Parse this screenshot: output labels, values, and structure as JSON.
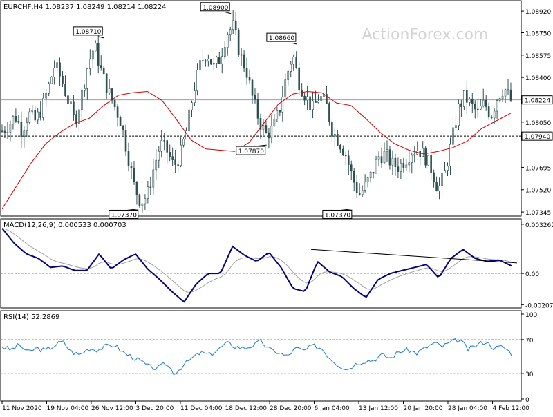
{
  "watermark": "ActionForex.com",
  "colors": {
    "candle": "#2f4f4f",
    "ma": "#cc0000",
    "macd": "#000080",
    "signal": "#a0a0a0",
    "rsi": "#1e78c8",
    "frame": "#000000",
    "dotted": "#a0a0a0"
  },
  "chart_data": [
    {
      "type": "candlestick",
      "title": "EURCHF,H4  1.08237 1.08249 1.08214 1.08224",
      "ylim": [
        1.0734,
        1.0898
      ],
      "y_ticks": [
        "1.08920",
        "1.08750",
        "1.08575",
        "1.08400",
        "1.08050",
        "1.07695",
        "1.07520",
        "1.07345"
      ],
      "y_tick_values": [
        1.0892,
        1.0875,
        1.08575,
        1.084,
        1.0805,
        1.07695,
        1.0752,
        1.07345
      ],
      "current_price_label": "1.08224",
      "current_price": 1.08224,
      "support_label": "1.07940",
      "support": 1.0794,
      "x_ticks": [
        "11 Nov 2020",
        "19 Nov 04:00",
        "26 Nov 12:00",
        "3 Dec 20:00",
        "11 Dec 04:00",
        "18 Dec 12:00",
        "28 Dec 20:00",
        "6 Jan 04:00",
        "13 Jan 12:00",
        "20 Jan 20:00",
        "28 Jan 04:00",
        "4 Feb 12:00"
      ],
      "annotations": [
        {
          "label": "1.08710",
          "value": 1.0871
        },
        {
          "label": "1.08900",
          "value": 1.089
        },
        {
          "label": "1.08660",
          "value": 1.0866
        },
        {
          "label": "1.07370",
          "value": 1.0737
        },
        {
          "label": "1.07870",
          "value": 1.0787
        },
        {
          "label": "1.07370",
          "value": 1.0737
        }
      ],
      "close_path": [
        1.0798,
        1.0803,
        1.081,
        1.0798,
        1.0812,
        1.0806,
        1.0815,
        1.0832,
        1.085,
        1.0838,
        1.0822,
        1.0805,
        1.0825,
        1.085,
        1.0865,
        1.0845,
        1.083,
        1.0818,
        1.0805,
        1.078,
        1.0755,
        1.0742,
        1.0748,
        1.077,
        1.0788,
        1.0782,
        1.077,
        1.078,
        1.08,
        1.083,
        1.085,
        1.086,
        1.0848,
        1.0855,
        1.0875,
        1.088,
        1.0858,
        1.0845,
        1.0822,
        1.0805,
        1.0795,
        1.08,
        1.0815,
        1.084,
        1.0858,
        1.0835,
        1.0825,
        1.0815,
        1.0825,
        1.082,
        1.0798,
        1.079,
        1.078,
        1.0762,
        1.0748,
        1.0755,
        1.0765,
        1.0778,
        1.078,
        1.0772,
        1.077,
        1.0775,
        1.0782,
        1.0784,
        1.0778,
        1.0768,
        1.0752,
        1.0765,
        1.0788,
        1.0815,
        1.0825,
        1.0818,
        1.0812,
        1.082,
        1.081,
        1.0825,
        1.0832,
        1.0822
      ],
      "ma_path": [
        1.0737,
        1.0755,
        1.0773,
        1.0788,
        1.0797,
        1.0804,
        1.0808,
        1.0818,
        1.0826,
        1.0828,
        1.0829,
        1.0822,
        1.0807,
        1.0791,
        1.0784,
        1.0783,
        1.0782,
        1.0789,
        1.0804,
        1.0819,
        1.0827,
        1.0829,
        1.0828,
        1.082,
        1.0818,
        1.0808,
        1.0797,
        1.0788,
        1.0783,
        1.078,
        1.0782,
        1.0785,
        1.079,
        1.08,
        1.0806,
        1.0812
      ],
      "series": [
        {
          "name": "MA",
          "values": []
        }
      ]
    },
    {
      "type": "line",
      "title": "MACD(12,26,9) 0.000533 0.000703",
      "ylim": [
        -0.00215,
        0.0034
      ],
      "y_ticks": [
        "0.003267",
        "0.00",
        "-0.002072"
      ],
      "y_tick_values": [
        0.003267,
        0.0,
        -0.002072
      ],
      "macd_path": [
        0.003,
        0.002,
        0.0013,
        0.001,
        0.0004,
        0.0005,
        0.0002,
        0.0002,
        0.0013,
        0.0003,
        0.0009,
        0.0013,
        0.0003,
        -0.0004,
        -0.0012,
        -0.0019,
        -0.0007,
        0.0,
        0.0,
        0.0018,
        0.0012,
        0.0008,
        0.0014,
        0.0004,
        -0.001,
        -0.0012,
        0.0008,
        0.0001,
        -0.0002,
        -0.001,
        -0.0016,
        -0.0004,
        0.0,
        0.0002,
        0.0004,
        0.0006,
        -0.0003,
        0.001,
        0.0016,
        0.001,
        0.0008,
        0.0009,
        0.0005
      ],
      "trendline": [
        [
          0.6,
          0.0016
        ],
        [
          1.0,
          0.0007
        ]
      ]
    },
    {
      "type": "line",
      "title": "RSI(14) 52.2869",
      "ylim": [
        0,
        100
      ],
      "y_ticks": [
        "100",
        "70",
        "30",
        "0"
      ],
      "y_tick_values": [
        100,
        70,
        30,
        0
      ],
      "rsi_path": [
        62,
        58,
        64,
        55,
        60,
        57,
        63,
        68,
        56,
        52,
        60,
        58,
        62,
        64,
        55,
        50,
        45,
        38,
        36,
        42,
        30,
        40,
        48,
        55,
        52,
        58,
        66,
        62,
        60,
        63,
        68,
        58,
        55,
        50,
        60,
        57,
        63,
        60,
        48,
        40,
        35,
        42,
        45,
        46,
        52,
        48,
        56,
        58,
        54,
        60,
        66,
        62,
        67,
        70,
        58,
        64,
        68,
        60,
        62,
        54
      ],
      "levels": [
        70,
        30
      ]
    }
  ]
}
